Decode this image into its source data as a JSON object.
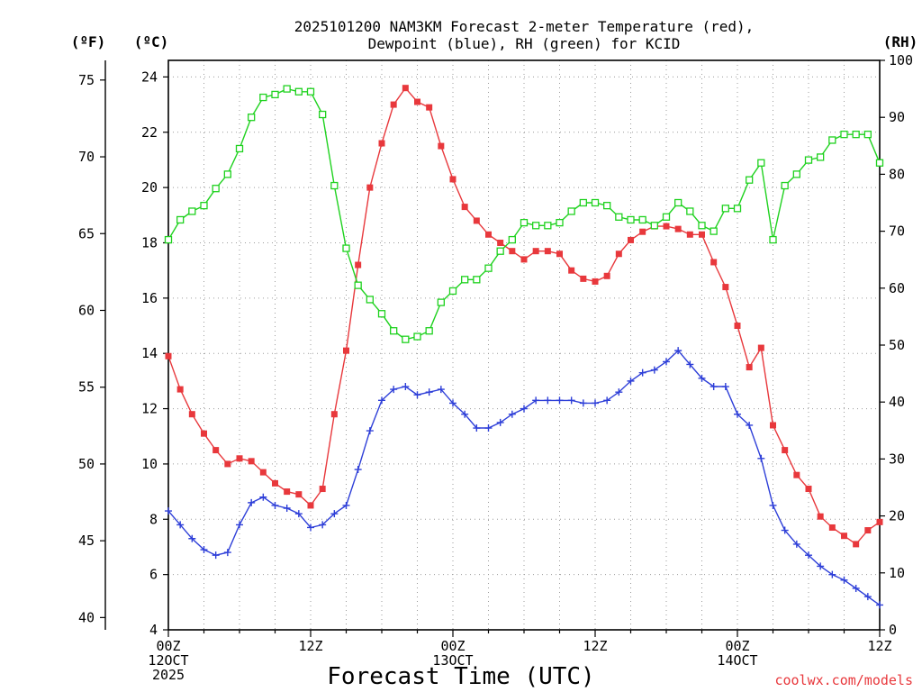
{
  "chart_data": {
    "type": "line",
    "title_line1": "2025101200 NAM3KM Forecast 2-meter Temperature (red),",
    "title_line2": "Dewpoint (blue), RH (green) for KCID",
    "xlabel": "Forecast Time (UTC)",
    "credit": "coolwx.com/models",
    "units": {
      "fahrenheit": "(ºF)",
      "celsius": "(ºC)",
      "rh": "(RH)"
    },
    "x_range_hours": [
      0,
      60
    ],
    "x_ticks": [
      {
        "hour": 0,
        "line1": "00Z",
        "line2": "12OCT",
        "line3": "2025"
      },
      {
        "hour": 12,
        "line1": "12Z",
        "line2": "",
        "line3": ""
      },
      {
        "hour": 24,
        "line1": "00Z",
        "line2": "13OCT",
        "line3": ""
      },
      {
        "hour": 36,
        "line1": "12Z",
        "line2": "",
        "line3": ""
      },
      {
        "hour": 48,
        "line1": "00Z",
        "line2": "14OCT",
        "line3": ""
      },
      {
        "hour": 60,
        "line1": "12Z",
        "line2": "",
        "line3": ""
      }
    ],
    "y_celsius_range": [
      4,
      24.6
    ],
    "y_celsius_ticks": [
      4,
      6,
      8,
      10,
      12,
      14,
      16,
      18,
      20,
      22,
      24
    ],
    "y_fahrenheit_ticks": [
      40,
      45,
      50,
      55,
      60,
      65,
      70,
      75
    ],
    "y_rh_range": [
      0,
      100
    ],
    "y_rh_ticks": [
      0,
      10,
      20,
      30,
      40,
      50,
      60,
      70,
      80,
      90,
      100
    ],
    "colors": {
      "temperature": "#e8383c",
      "dewpoint": "#2e3fd8",
      "rh": "#1fd21f",
      "grid": "#9a9a9a",
      "axis": "#000000"
    },
    "series": [
      {
        "name": "Temperature (°C)",
        "axis": "celsius",
        "color": "#e8383c",
        "marker": "filled-square",
        "x": [
          0,
          1,
          2,
          3,
          4,
          5,
          6,
          7,
          8,
          9,
          10,
          11,
          12,
          13,
          14,
          15,
          16,
          17,
          18,
          19,
          20,
          21,
          22,
          23,
          24,
          25,
          26,
          27,
          28,
          29,
          30,
          31,
          32,
          33,
          34,
          35,
          36,
          37,
          38,
          39,
          40,
          41,
          42,
          43,
          44,
          45,
          46,
          47,
          48,
          49,
          50,
          51,
          52,
          53,
          54,
          55,
          56,
          57,
          58,
          59,
          60
        ],
        "values": [
          13.9,
          12.7,
          11.8,
          11.1,
          10.5,
          10.0,
          10.2,
          10.1,
          9.7,
          9.3,
          9.0,
          8.9,
          8.5,
          9.1,
          11.8,
          14.1,
          17.2,
          20.0,
          21.6,
          23.0,
          23.6,
          23.1,
          22.9,
          21.5,
          20.3,
          19.3,
          18.8,
          18.3,
          18.0,
          17.7,
          17.4,
          17.7,
          17.7,
          17.6,
          17.0,
          16.7,
          16.6,
          16.8,
          17.6,
          18.1,
          18.4,
          18.6,
          18.6,
          18.5,
          18.3,
          18.3,
          17.3,
          16.4,
          15.0,
          13.5,
          14.2,
          11.4,
          10.5,
          9.6,
          9.1,
          8.1,
          7.7,
          7.4,
          7.1,
          7.6,
          7.9
        ]
      },
      {
        "name": "Dewpoint (°C)",
        "axis": "celsius",
        "color": "#2e3fd8",
        "marker": "plus",
        "x": [
          0,
          1,
          2,
          3,
          4,
          5,
          6,
          7,
          8,
          9,
          10,
          11,
          12,
          13,
          14,
          15,
          16,
          17,
          18,
          19,
          20,
          21,
          22,
          23,
          24,
          25,
          26,
          27,
          28,
          29,
          30,
          31,
          32,
          33,
          34,
          35,
          36,
          37,
          38,
          39,
          40,
          41,
          42,
          43,
          44,
          45,
          46,
          47,
          48,
          49,
          50,
          51,
          52,
          53,
          54,
          55,
          56,
          57,
          58,
          59,
          60
        ],
        "values": [
          8.3,
          7.8,
          7.3,
          6.9,
          6.7,
          6.8,
          7.8,
          8.6,
          8.8,
          8.5,
          8.4,
          8.2,
          7.7,
          7.8,
          8.2,
          8.5,
          9.8,
          11.2,
          12.3,
          12.7,
          12.8,
          12.5,
          12.6,
          12.7,
          12.2,
          11.8,
          11.3,
          11.3,
          11.5,
          11.8,
          12.0,
          12.3,
          12.3,
          12.3,
          12.3,
          12.2,
          12.2,
          12.3,
          12.6,
          13.0,
          13.3,
          13.4,
          13.7,
          14.1,
          13.6,
          13.1,
          12.8,
          12.8,
          11.8,
          11.4,
          10.2,
          8.5,
          7.6,
          7.1,
          6.7,
          6.3,
          6.0,
          5.8,
          5.5,
          5.2,
          4.9
        ]
      },
      {
        "name": "RH (%)",
        "axis": "rh",
        "color": "#1fd21f",
        "marker": "open-square",
        "x": [
          0,
          1,
          2,
          3,
          4,
          5,
          6,
          7,
          8,
          9,
          10,
          11,
          12,
          13,
          14,
          15,
          16,
          17,
          18,
          19,
          20,
          21,
          22,
          23,
          24,
          25,
          26,
          27,
          28,
          29,
          30,
          31,
          32,
          33,
          34,
          35,
          36,
          37,
          38,
          39,
          40,
          41,
          42,
          43,
          44,
          45,
          46,
          47,
          48,
          49,
          50,
          51,
          52,
          53,
          54,
          55,
          56,
          57,
          58,
          59,
          60
        ],
        "values": [
          68.5,
          72.0,
          73.5,
          74.5,
          77.5,
          80.0,
          84.5,
          90.0,
          93.5,
          94.0,
          95.0,
          94.5,
          94.5,
          90.5,
          78.0,
          67.0,
          60.5,
          58.0,
          55.5,
          52.5,
          51.0,
          51.5,
          52.5,
          57.5,
          59.5,
          61.5,
          61.5,
          63.5,
          66.5,
          68.5,
          71.5,
          71.0,
          71.0,
          71.5,
          73.5,
          75.0,
          75.0,
          74.5,
          72.5,
          72.0,
          72.0,
          71.0,
          72.5,
          75.0,
          73.5,
          71.0,
          70.0,
          74.0,
          74.0,
          79.0,
          82.0,
          68.5,
          78.0,
          80.0,
          82.5,
          83.0,
          86.0,
          87.0,
          87.0,
          87.0,
          82.0
        ]
      }
    ]
  }
}
